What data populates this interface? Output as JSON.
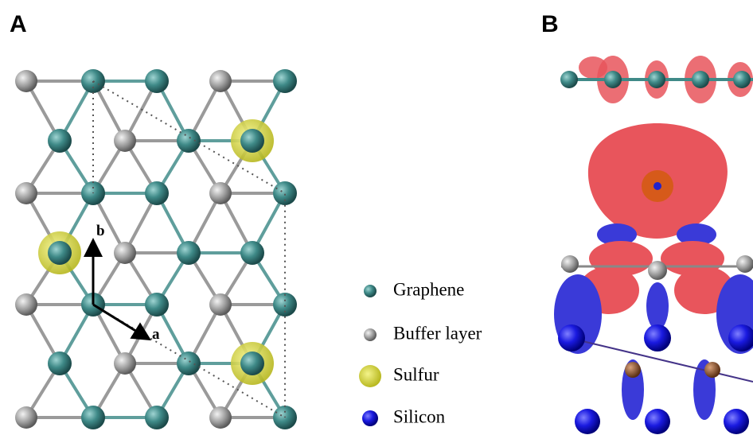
{
  "panels": [
    {
      "label": "A"
    },
    {
      "label": "B"
    }
  ],
  "lattice_vectors": {
    "a": "a",
    "b": "b"
  },
  "legend": [
    {
      "label": "Graphene"
    },
    {
      "label": "Buffer layer"
    },
    {
      "label": "Sulfur"
    },
    {
      "label": "Silicon"
    }
  ]
}
